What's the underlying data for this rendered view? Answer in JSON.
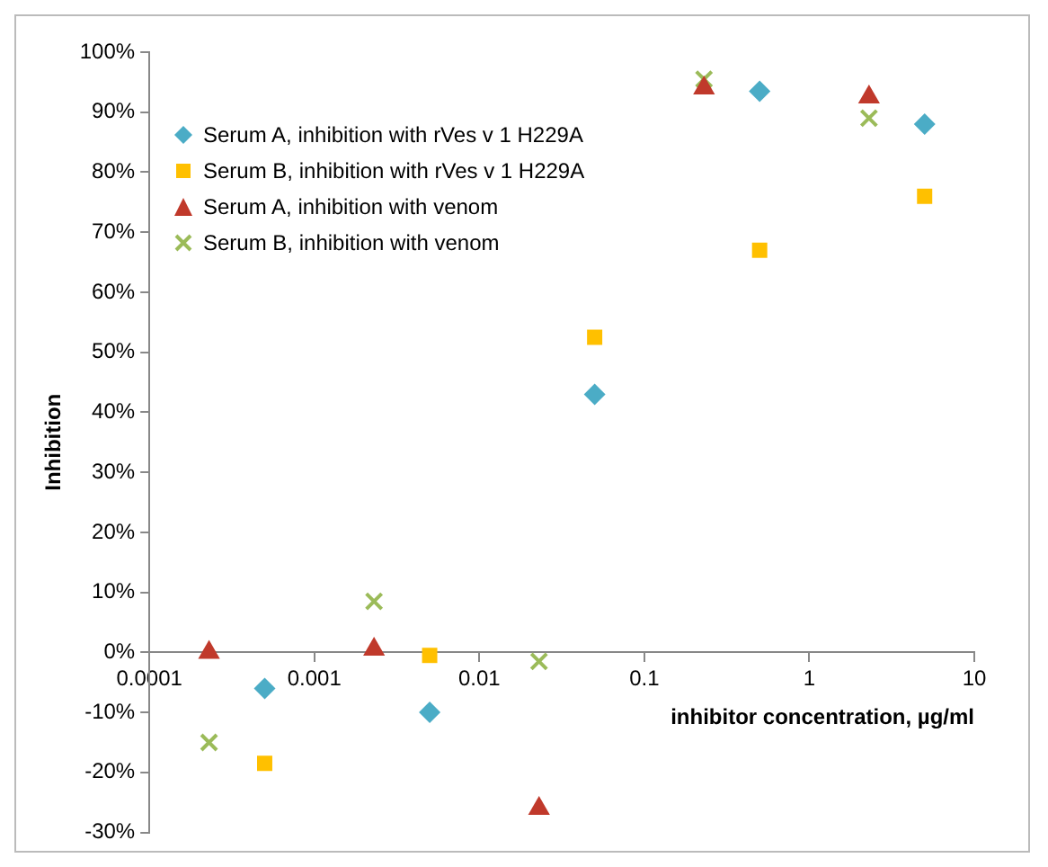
{
  "chart_data": {
    "type": "scatter",
    "xlabel": "inhibitor concentration, µg/ml",
    "ylabel": "Inhibition",
    "log": "x",
    "grid": false,
    "legend": "top left",
    "xlim": [
      0.0001,
      10
    ],
    "xticks": [
      0.0001,
      0.001,
      0.01,
      0.1,
      1,
      10
    ],
    "ylim": [
      -30,
      100
    ],
    "yticks": [
      {
        "value": -30,
        "label": "-30%"
      },
      {
        "value": -20,
        "label": "-20%"
      },
      {
        "value": -10,
        "label": "-10%"
      },
      {
        "value": 0,
        "label": "0%"
      },
      {
        "value": 10,
        "label": "10%"
      },
      {
        "value": 20,
        "label": "20%"
      },
      {
        "value": 30,
        "label": "30%"
      },
      {
        "value": 40,
        "label": "40%"
      },
      {
        "value": 50,
        "label": "50%"
      },
      {
        "value": 60,
        "label": "60%"
      },
      {
        "value": 70,
        "label": "70%"
      },
      {
        "value": 80,
        "label": "80%"
      },
      {
        "value": 90,
        "label": "90%"
      },
      {
        "value": 100,
        "label": "100%"
      }
    ],
    "series": [
      {
        "name": "Serum A, inhibition with rVes v 1 H229A",
        "color": "#4bacc6",
        "marker": "diamond",
        "x": [
          0.0005,
          0.005,
          0.05,
          0.5,
          5
        ],
        "values": [
          -6,
          -10,
          43,
          93.5,
          88
        ]
      },
      {
        "name": "Serum B, inhibition with rVes v 1 H229A",
        "color": "#ffc000",
        "marker": "square",
        "x": [
          0.0005,
          0.005,
          0.05,
          0.5,
          5
        ],
        "values": [
          -18.5,
          -0.5,
          52.5,
          67,
          76
        ]
      },
      {
        "name": "Serum A, inhibition with venom",
        "color": "#c0392b",
        "marker": "triangle",
        "x": [
          0.00023,
          0.0023,
          0.023,
          0.23,
          2.3
        ],
        "values": [
          0,
          0.5,
          -26,
          94,
          92.5
        ]
      },
      {
        "name": "Serum B, inhibition with venom",
        "color": "#9bbb59",
        "marker": "cross",
        "x": [
          0.00023,
          0.0023,
          0.023,
          0.23,
          2.3
        ],
        "values": [
          -15,
          8.5,
          -1.5,
          95.5,
          89
        ]
      }
    ]
  }
}
